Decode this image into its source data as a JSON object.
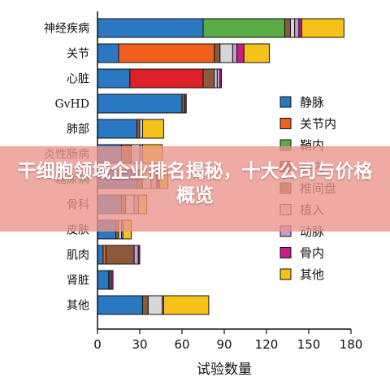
{
  "banner": {
    "title": "干细胞领域企业排名揭秘，十大公司与价格概览"
  },
  "colors": {
    "静脉": "#2a78c2",
    "关节内": "#f0601c",
    "鞘内": "#5aaa46",
    "心内": "#de2028",
    "椎间盘": "#8c5a3a",
    "植入": "#d7d7d7",
    "动脉": "#c79ad8",
    "骨内": "#cc1a8a",
    "其他": "#f6c21a"
  },
  "chart_data": {
    "type": "bar",
    "orientation": "horizontal",
    "stacked": true,
    "xlabel": "试验数量",
    "ylabel": "",
    "xlim": [
      0,
      180
    ],
    "xticks": [
      0,
      30,
      60,
      90,
      120,
      150,
      180
    ],
    "grid": false,
    "legend_position": "right",
    "categories": [
      "神经疾病",
      "关节",
      "心脏",
      "GvHD",
      "肺部",
      "炎性肠病",
      "糖尿病",
      "骨科",
      "皮肤",
      "肌肉",
      "肾脏",
      "其他"
    ],
    "series": [
      {
        "name": "静脉",
        "values": [
          75,
          15,
          23,
          60,
          28,
          17,
          28,
          17,
          13,
          4,
          8,
          32
        ]
      },
      {
        "name": "关节内",
        "values": [
          0,
          68,
          0,
          0,
          0,
          0,
          0,
          0,
          0,
          2,
          0,
          0
        ]
      },
      {
        "name": "鞘内",
        "values": [
          58,
          0,
          0,
          0,
          0,
          0,
          0,
          0,
          0,
          0,
          0,
          0
        ]
      },
      {
        "name": "心内",
        "values": [
          0,
          0,
          52,
          0,
          0,
          0,
          0,
          0,
          0,
          0,
          0,
          0
        ]
      },
      {
        "name": "椎间盘",
        "values": [
          4,
          4,
          8,
          2,
          2,
          7,
          4,
          3,
          2,
          20,
          1,
          4
        ]
      },
      {
        "name": "植入",
        "values": [
          3,
          9,
          2,
          0,
          2,
          6,
          6,
          6,
          2,
          0,
          1,
          10
        ]
      },
      {
        "name": "动脉",
        "values": [
          3,
          3,
          2,
          0,
          0,
          2,
          4,
          3,
          1,
          3,
          0,
          1
        ]
      },
      {
        "name": "骨内",
        "values": [
          2,
          5,
          1,
          1,
          0,
          0,
          2,
          0,
          0,
          1,
          1,
          0
        ]
      },
      {
        "name": "其他",
        "values": [
          30,
          18,
          0,
          0,
          15,
          14,
          6,
          6,
          6,
          0,
          0,
          32
        ]
      }
    ]
  }
}
